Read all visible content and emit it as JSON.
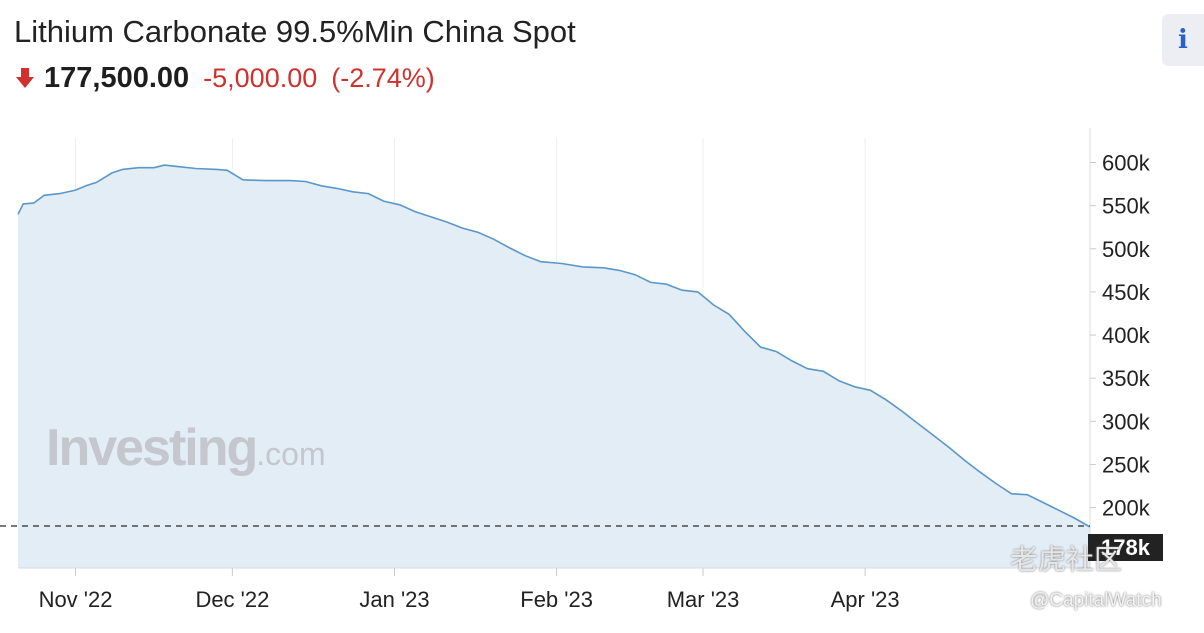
{
  "header": {
    "title": "Lithium Carbonate 99.5%Min China Spot",
    "price": "177,500.00",
    "change": "-5,000.00",
    "change_pct": "(-2.74%)",
    "direction_icon": "down-arrow-icon",
    "info_label": "i"
  },
  "colors": {
    "line": "#5b97c9",
    "fill": "#e3edf6",
    "negative": "#d0312d",
    "info": "#2a61c9"
  },
  "watermark": {
    "brand": "Investing",
    "suffix": ".com"
  },
  "credit": {
    "label": "老虎社区",
    "handle": "@CapitalWatch"
  },
  "chart_data": {
    "type": "area",
    "xlabel": "",
    "ylabel": "",
    "y_axis_position": "right",
    "ylim": [
      130000,
      640000
    ],
    "y_ticks": [
      200000,
      250000,
      300000,
      350000,
      400000,
      450000,
      500000,
      550000,
      600000
    ],
    "y_tick_labels": [
      "200k",
      "250k",
      "300k",
      "350k",
      "400k",
      "450k",
      "500k",
      "550k",
      "600k"
    ],
    "x_ticks": [
      "2022-11-01",
      "2022-12-01",
      "2023-01-01",
      "2023-02-01",
      "2023-03-01",
      "2023-04-01"
    ],
    "x_tick_labels": [
      "Nov '22",
      "Dec '22",
      "Jan '23",
      "Feb '23",
      "Mar '23",
      "Apr '23"
    ],
    "last_value_label": "178k",
    "last_value": 177500,
    "grid": "vertical",
    "series": [
      {
        "points": [
          [
            "2022-10-21",
            540000
          ],
          [
            "2022-10-22",
            552000
          ],
          [
            "2022-10-24",
            553000
          ],
          [
            "2022-10-26",
            562000
          ],
          [
            "2022-10-29",
            564000
          ],
          [
            "2022-11-01",
            568000
          ],
          [
            "2022-11-03",
            573000
          ],
          [
            "2022-11-05",
            577000
          ],
          [
            "2022-11-08",
            588000
          ],
          [
            "2022-11-10",
            592000
          ],
          [
            "2022-11-13",
            594000
          ],
          [
            "2022-11-16",
            594000
          ],
          [
            "2022-11-18",
            597000
          ],
          [
            "2022-11-21",
            595000
          ],
          [
            "2022-11-24",
            593000
          ],
          [
            "2022-11-28",
            592000
          ],
          [
            "2022-11-30",
            591000
          ],
          [
            "2022-12-03",
            580000
          ],
          [
            "2022-12-07",
            579000
          ],
          [
            "2022-12-12",
            579000
          ],
          [
            "2022-12-15",
            578000
          ],
          [
            "2022-12-18",
            573000
          ],
          [
            "2022-12-21",
            570000
          ],
          [
            "2022-12-24",
            566000
          ],
          [
            "2022-12-27",
            564000
          ],
          [
            "2022-12-30",
            555000
          ],
          [
            "2023-01-02",
            551000
          ],
          [
            "2023-01-05",
            543000
          ],
          [
            "2023-01-08",
            537000
          ],
          [
            "2023-01-11",
            531000
          ],
          [
            "2023-01-14",
            524000
          ],
          [
            "2023-01-17",
            519000
          ],
          [
            "2023-01-20",
            511000
          ],
          [
            "2023-01-23",
            501000
          ],
          [
            "2023-01-26",
            492000
          ],
          [
            "2023-01-29",
            485000
          ],
          [
            "2023-02-02",
            483000
          ],
          [
            "2023-02-06",
            479000
          ],
          [
            "2023-02-10",
            478000
          ],
          [
            "2023-02-13",
            475000
          ],
          [
            "2023-02-16",
            470000
          ],
          [
            "2023-02-19",
            461000
          ],
          [
            "2023-02-22",
            459000
          ],
          [
            "2023-02-25",
            452000
          ],
          [
            "2023-02-28",
            450000
          ],
          [
            "2023-03-03",
            435000
          ],
          [
            "2023-03-06",
            424000
          ],
          [
            "2023-03-09",
            404000
          ],
          [
            "2023-03-12",
            386000
          ],
          [
            "2023-03-15",
            381000
          ],
          [
            "2023-03-18",
            370000
          ],
          [
            "2023-03-21",
            361000
          ],
          [
            "2023-03-24",
            358000
          ],
          [
            "2023-03-27",
            347000
          ],
          [
            "2023-03-30",
            340000
          ],
          [
            "2023-04-02",
            336000
          ],
          [
            "2023-04-05",
            325000
          ],
          [
            "2023-04-08",
            312000
          ],
          [
            "2023-04-11",
            298000
          ],
          [
            "2023-04-14",
            284000
          ],
          [
            "2023-04-17",
            270000
          ],
          [
            "2023-04-20",
            255000
          ],
          [
            "2023-04-23",
            241000
          ],
          [
            "2023-04-26",
            228000
          ],
          [
            "2023-04-29",
            216000
          ],
          [
            "2023-05-02",
            215000
          ],
          [
            "2023-05-05",
            206000
          ],
          [
            "2023-05-08",
            197000
          ],
          [
            "2023-05-11",
            188000
          ],
          [
            "2023-05-14",
            177500
          ]
        ]
      }
    ]
  }
}
